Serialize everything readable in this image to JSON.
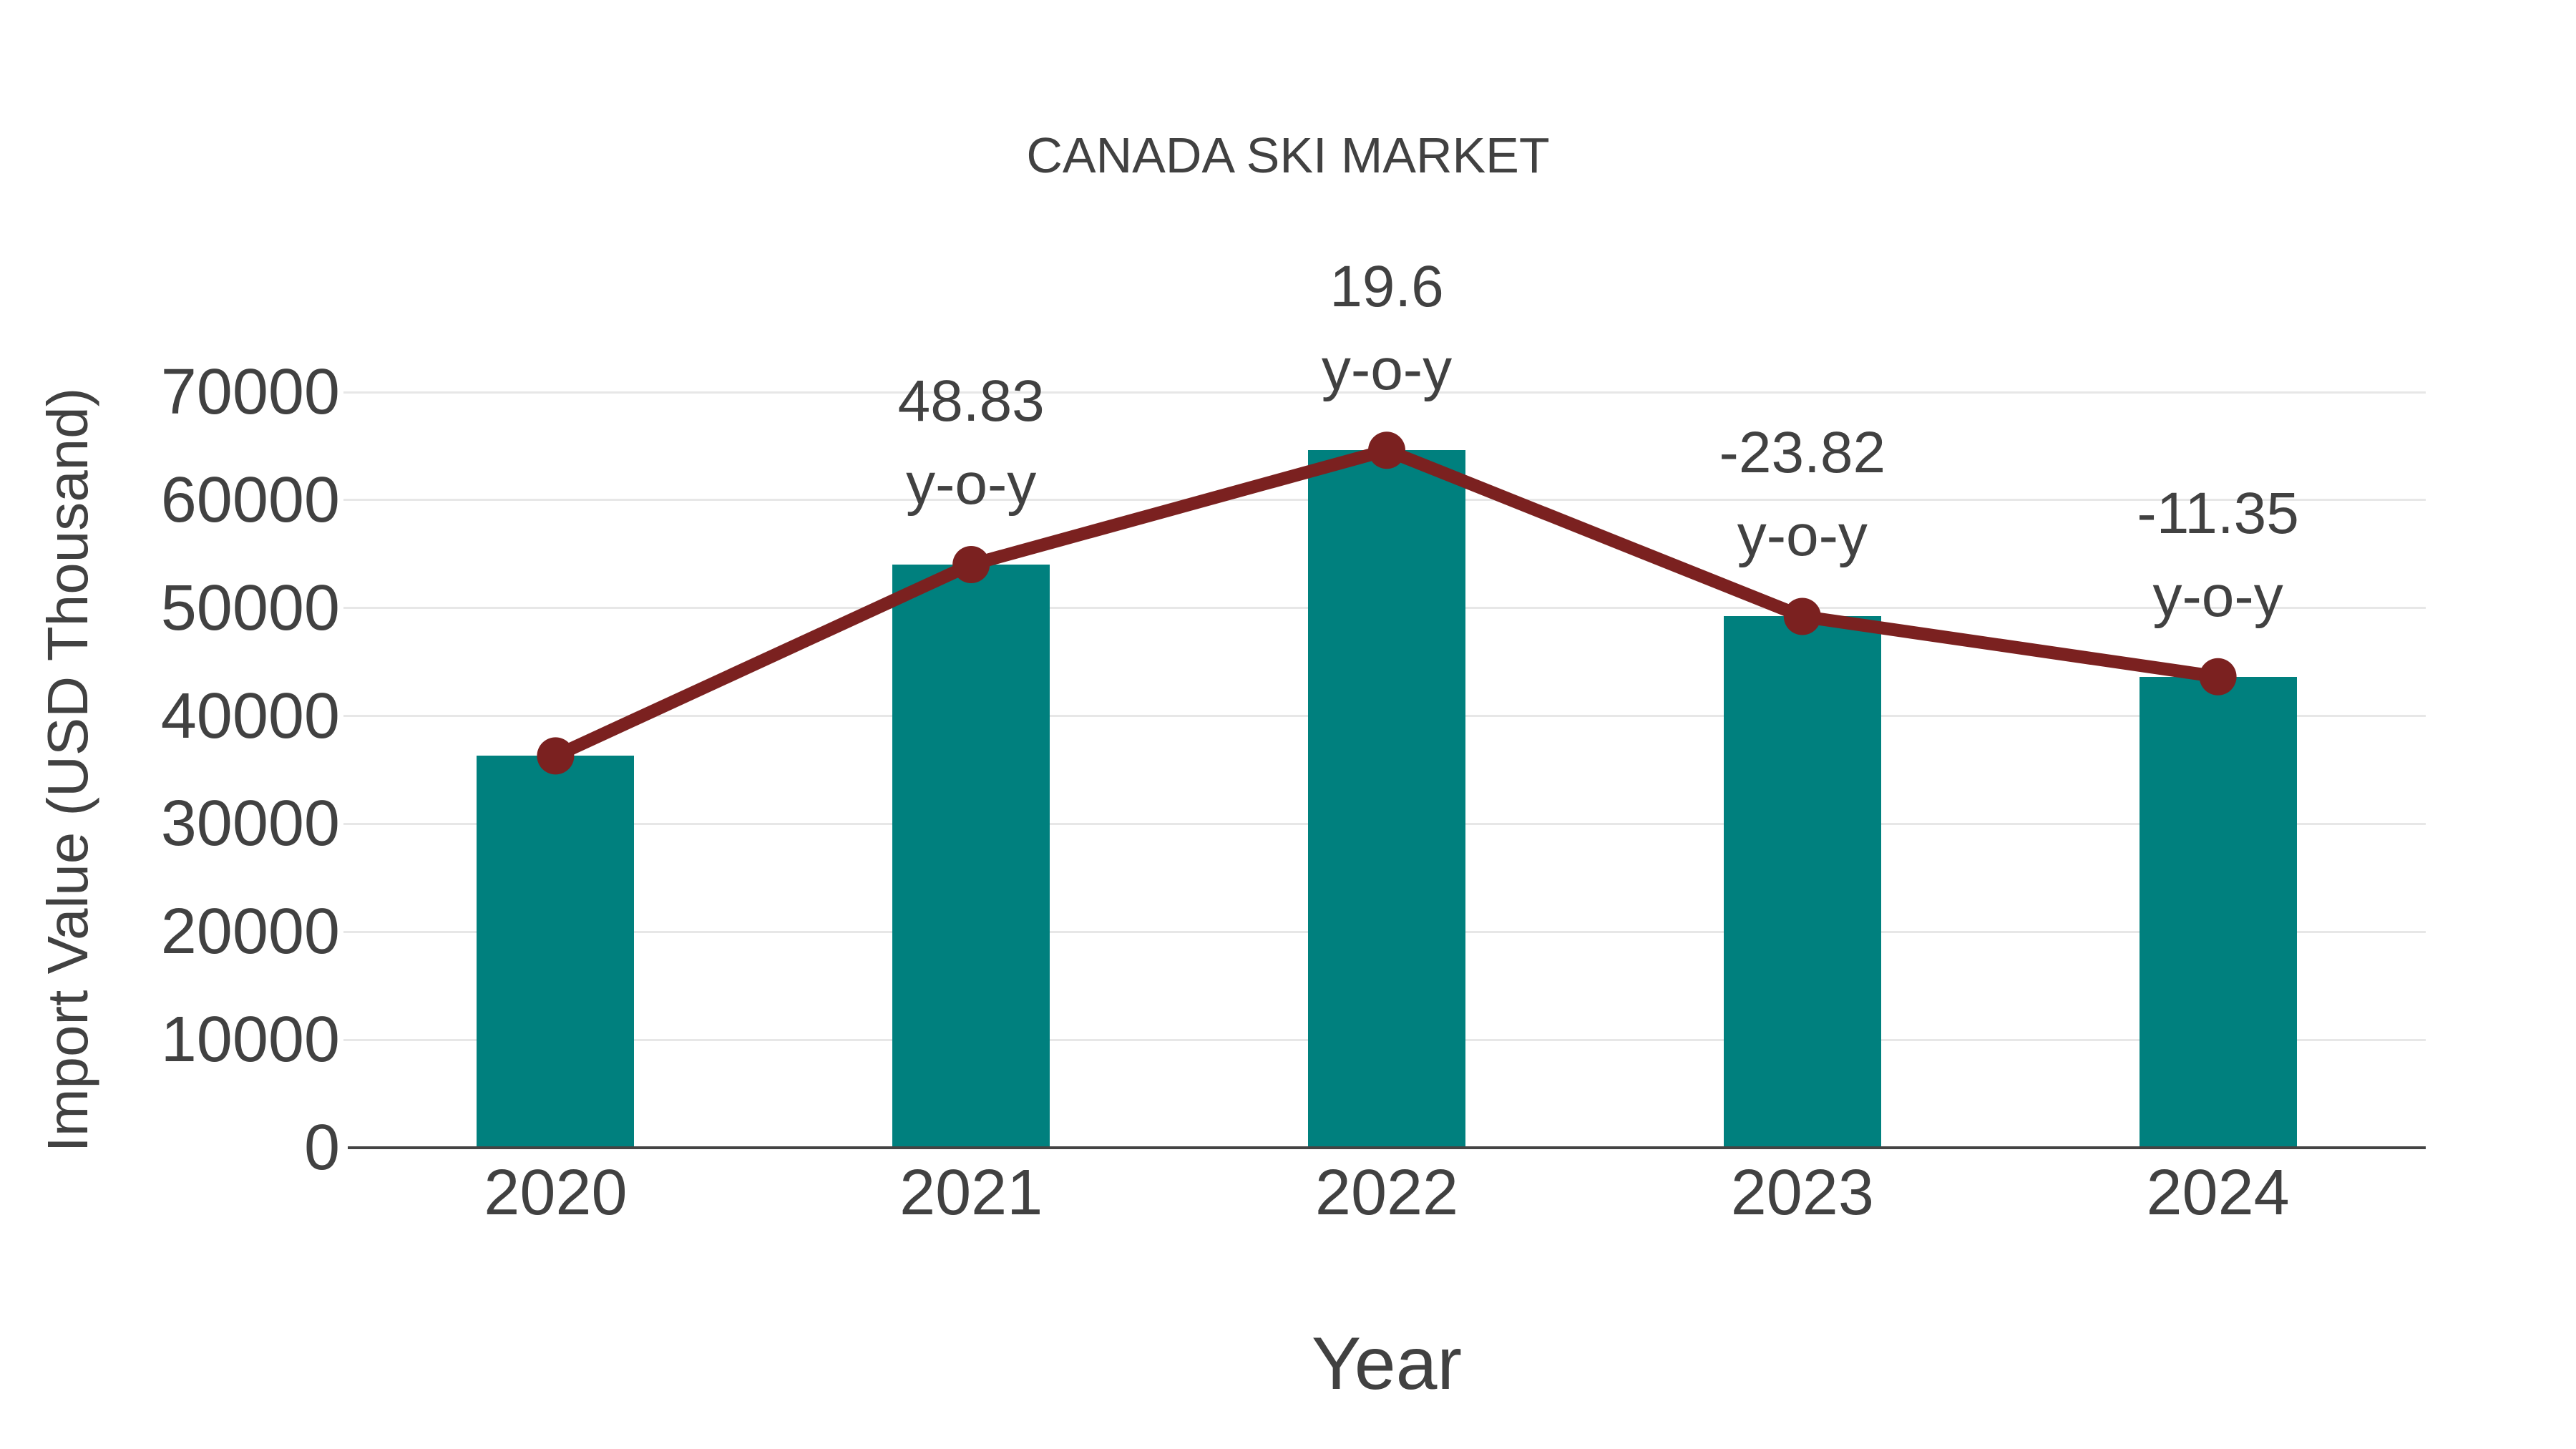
{
  "chart_data": {
    "type": "bar",
    "title": "CANADA SKI MARKET",
    "xlabel": "Year",
    "ylabel": "Import Value (USD Thousand)",
    "categories": [
      "2020",
      "2021",
      "2022",
      "2023",
      "2024"
    ],
    "series": [
      {
        "name": "Import Value (USD Thousand)",
        "type": "bar",
        "values": [
          36300,
          54025,
          64615,
          49220,
          43635
        ]
      },
      {
        "name": "y-o-y change (%)",
        "type": "line",
        "values": [
          null,
          48.83,
          19.6,
          -23.82,
          -11.35
        ]
      }
    ],
    "annotations": [
      {
        "category": "2021",
        "value_label": "48.83",
        "suffix_label": "y-o-y"
      },
      {
        "category": "2022",
        "value_label": "19.6",
        "suffix_label": "y-o-y"
      },
      {
        "category": "2023",
        "value_label": "-23.82",
        "suffix_label": "y-o-y"
      },
      {
        "category": "2024",
        "value_label": "-11.35",
        "suffix_label": "y-o-y"
      }
    ],
    "ylim": [
      0,
      70000
    ],
    "yticks": [
      0,
      10000,
      20000,
      30000,
      40000,
      50000,
      60000,
      70000
    ],
    "grid": "horizontal-only",
    "legend": "none",
    "colors": {
      "bar": "#00807e",
      "line": "#7b2120",
      "marker": "#7b2120",
      "text": "#414141",
      "grid": "#e7e7e7",
      "axis": "#444444",
      "background": "#ffffff"
    }
  }
}
